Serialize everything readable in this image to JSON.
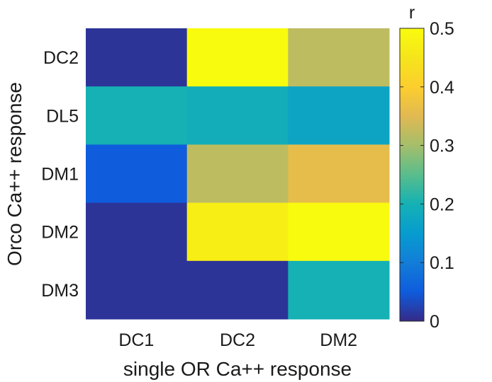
{
  "chart_data": {
    "type": "heatmap",
    "x_categories": [
      "DC1",
      "DC2",
      "DM2"
    ],
    "y_categories": [
      "DC2",
      "DL5",
      "DM1",
      "DM2",
      "DM3"
    ],
    "values": [
      [
        0.01,
        0.5,
        0.32
      ],
      [
        0.2,
        0.19,
        0.17
      ],
      [
        0.05,
        0.32,
        0.36
      ],
      [
        0.01,
        0.47,
        0.5
      ],
      [
        0.01,
        0.01,
        0.2
      ]
    ],
    "xlabel": "single OR Ca++ response",
    "ylabel": "Orco Ca++ response",
    "colorbar": {
      "title": "r",
      "min": 0,
      "max": 0.5,
      "ticks": [
        0,
        0.1,
        0.2,
        0.3,
        0.4,
        0.5
      ],
      "tick_labels": [
        "0",
        "0.1",
        "0.2",
        "0.3",
        "0.4",
        "0.5"
      ],
      "colormap": "parula"
    }
  }
}
